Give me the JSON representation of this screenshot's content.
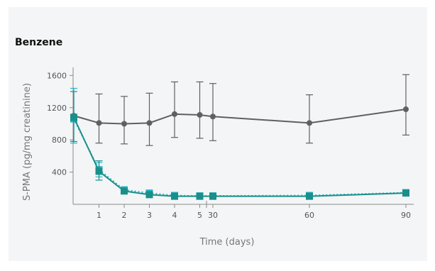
{
  "chart_data": {
    "type": "line",
    "title": "Benzene",
    "xlabel": "Time (days)",
    "ylabel": "S-PMA (pg/mg creatinine)",
    "x_ticks": [
      1,
      2,
      3,
      4,
      5,
      30,
      60,
      90
    ],
    "y_ticks": [
      400,
      800,
      1200,
      1600
    ],
    "ylim": [
      0,
      1700
    ],
    "x": [
      0,
      1,
      2,
      3,
      4,
      5,
      30,
      60,
      90
    ],
    "axis_break": "between 5 and 30 on x",
    "grid": false,
    "legend": "none",
    "series": [
      {
        "color": "#5f6062",
        "marker": "circle",
        "line": "solid",
        "values": [
          1100,
          1010,
          1000,
          1010,
          1120,
          1110,
          1090,
          1010,
          1180
        ],
        "err_lo": [
          1100,
          760,
          750,
          730,
          830,
          820,
          790,
          760,
          860
        ],
        "err_hi": [
          1100,
          1370,
          1340,
          1380,
          1520,
          1520,
          1500,
          1360,
          1610
        ]
      },
      {
        "color": "#2ab7cc",
        "marker": "square",
        "line": "dotted",
        "values": [
          1060,
          430,
          180,
          140,
          110,
          105,
          105,
          110,
          145
        ],
        "err_lo": [
          760,
          340,
          150,
          110,
          90,
          85,
          85,
          90,
          125
        ],
        "err_hi": [
          1440,
          520,
          210,
          165,
          130,
          125,
          125,
          130,
          165
        ]
      },
      {
        "color": "#1a8f8a",
        "marker": "square",
        "line": "solid",
        "values": [
          1080,
          410,
          165,
          120,
          100,
          100,
          100,
          100,
          140
        ],
        "err_lo": [
          780,
          300,
          140,
          100,
          85,
          85,
          85,
          85,
          120
        ],
        "err_hi": [
          1400,
          540,
          195,
          140,
          115,
          115,
          115,
          115,
          160
        ]
      }
    ]
  }
}
